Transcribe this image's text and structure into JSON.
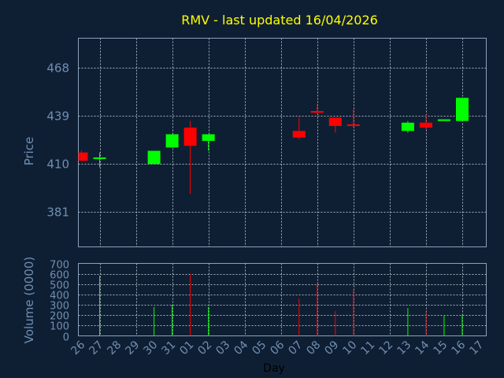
{
  "chart_data": {
    "title": "RMV - last updated 16/04/2026",
    "colors": {
      "up": "#00ff00",
      "down": "#ff0000",
      "background": "#0f1f33",
      "text": "#6f8fb3",
      "title": "#ffff00"
    },
    "price_panel": {
      "type": "candlestick",
      "ylabel": "Price",
      "yticks": [
        381,
        410,
        439,
        468
      ],
      "ylim": [
        360,
        486
      ],
      "grid": true
    },
    "volume_panel": {
      "type": "bar",
      "ylabel": "Volume (0000)",
      "yticks": [
        0,
        100,
        200,
        300,
        400,
        500,
        600,
        700
      ],
      "ylim": [
        0,
        700
      ],
      "grid": true
    },
    "xlabel": "Day",
    "x_tick_labels": [
      "26",
      "27",
      "28",
      "29",
      "30",
      "31",
      "01",
      "02",
      "03",
      "04",
      "05",
      "06",
      "07",
      "08",
      "09",
      "10",
      "11",
      "12",
      "13",
      "14",
      "15",
      "16",
      "17"
    ],
    "candles": [
      {
        "day": "26",
        "open": 417,
        "high": 418,
        "low": 412,
        "close": 412,
        "volume": 0
      },
      {
        "day": "27",
        "open": 414,
        "high": 417,
        "low": 408,
        "close": 414,
        "volume": 580
      },
      {
        "day": "30",
        "open": 410,
        "high": 418,
        "low": 410,
        "close": 418,
        "volume": 280
      },
      {
        "day": "31",
        "open": 420,
        "high": 428,
        "low": 420,
        "close": 428,
        "volume": 300
      },
      {
        "day": "01",
        "open": 432,
        "high": 436,
        "low": 392,
        "close": 421,
        "volume": 600
      },
      {
        "day": "02",
        "open": 424,
        "high": 428,
        "low": 418,
        "close": 428,
        "volume": 280
      },
      {
        "day": "07",
        "open": 430,
        "high": 438,
        "low": 425,
        "close": 426,
        "volume": 360
      },
      {
        "day": "08",
        "open": 442,
        "high": 446,
        "low": 440,
        "close": 441,
        "volume": 500
      },
      {
        "day": "09",
        "open": 438,
        "high": 438,
        "low": 429,
        "close": 433,
        "volume": 240
      },
      {
        "day": "10",
        "open": 434,
        "high": 443,
        "low": 432,
        "close": 433,
        "volume": 450
      },
      {
        "day": "13",
        "open": 430,
        "high": 436,
        "low": 429,
        "close": 435,
        "volume": 270
      },
      {
        "day": "14",
        "open": 435,
        "high": 440,
        "low": 431,
        "close": 432,
        "volume": 240
      },
      {
        "day": "15",
        "open": 436,
        "high": 437,
        "low": 436,
        "close": 437,
        "volume": 200
      },
      {
        "day": "16",
        "open": 436,
        "high": 450,
        "low": 436,
        "close": 450,
        "volume": 200
      }
    ]
  }
}
